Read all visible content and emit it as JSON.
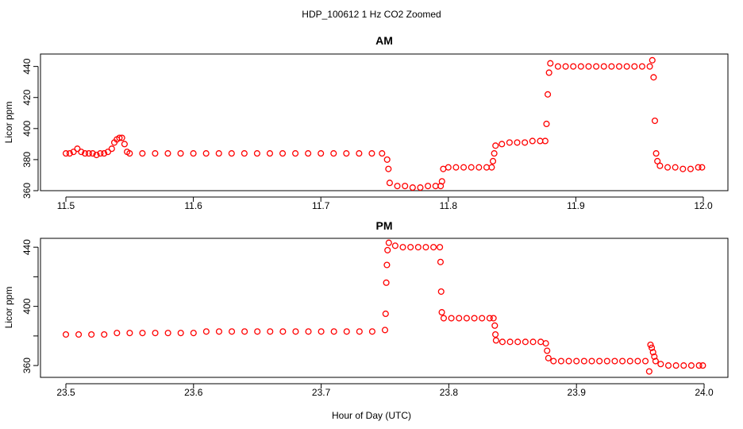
{
  "figure": {
    "title": "HDP_100612  1 Hz CO2 Zoomed",
    "xlabel": "Hour of Day (UTC)",
    "point_color": "#ff0000"
  },
  "chart_data": [
    {
      "type": "scatter",
      "title": "AM",
      "xlabel": "Hour of Day (UTC)",
      "ylabel": "Licor ppm",
      "xlim": [
        11.5,
        12.0
      ],
      "ylim": [
        360,
        448
      ],
      "xticks": [
        11.5,
        11.6,
        11.7,
        11.8,
        11.9,
        12.0
      ],
      "xtick_labels": [
        "11.5",
        "11.6",
        "11.7",
        "11.8",
        "11.9",
        "12.0"
      ],
      "yticks": [
        360,
        380,
        400,
        420,
        440
      ],
      "ytick_labels": [
        "360",
        "380",
        "400",
        "420",
        "440"
      ],
      "grid": false,
      "series": [
        {
          "color": "#ff0000",
          "points": [
            [
              11.5,
              384
            ],
            [
              11.503,
              384
            ],
            [
              11.506,
              385
            ],
            [
              11.509,
              387
            ],
            [
              11.512,
              385
            ],
            [
              11.515,
              384
            ],
            [
              11.518,
              384
            ],
            [
              11.521,
              384
            ],
            [
              11.524,
              383
            ],
            [
              11.527,
              384
            ],
            [
              11.53,
              384
            ],
            [
              11.533,
              385
            ],
            [
              11.536,
              387
            ],
            [
              11.538,
              391
            ],
            [
              11.54,
              393
            ],
            [
              11.542,
              394
            ],
            [
              11.544,
              394
            ],
            [
              11.546,
              390
            ],
            [
              11.548,
              385
            ],
            [
              11.55,
              384
            ],
            [
              11.56,
              384
            ],
            [
              11.57,
              384
            ],
            [
              11.58,
              384
            ],
            [
              11.59,
              384
            ],
            [
              11.6,
              384
            ],
            [
              11.61,
              384
            ],
            [
              11.62,
              384
            ],
            [
              11.63,
              384
            ],
            [
              11.64,
              384
            ],
            [
              11.65,
              384
            ],
            [
              11.66,
              384
            ],
            [
              11.67,
              384
            ],
            [
              11.68,
              384
            ],
            [
              11.69,
              384
            ],
            [
              11.7,
              384
            ],
            [
              11.71,
              384
            ],
            [
              11.72,
              384
            ],
            [
              11.73,
              384
            ],
            [
              11.74,
              384
            ],
            [
              11.748,
              384
            ],
            [
              11.752,
              380
            ],
            [
              11.753,
              374
            ],
            [
              11.754,
              365
            ],
            [
              11.76,
              363
            ],
            [
              11.766,
              363
            ],
            [
              11.772,
              362
            ],
            [
              11.778,
              362
            ],
            [
              11.784,
              363
            ],
            [
              11.79,
              363
            ],
            [
              11.794,
              363
            ],
            [
              11.795,
              366
            ],
            [
              11.796,
              374
            ],
            [
              11.8,
              375
            ],
            [
              11.806,
              375
            ],
            [
              11.812,
              375
            ],
            [
              11.818,
              375
            ],
            [
              11.824,
              375
            ],
            [
              11.83,
              375
            ],
            [
              11.834,
              375
            ],
            [
              11.835,
              379
            ],
            [
              11.836,
              384
            ],
            [
              11.837,
              389
            ],
            [
              11.842,
              390
            ],
            [
              11.848,
              391
            ],
            [
              11.854,
              391
            ],
            [
              11.86,
              391
            ],
            [
              11.866,
              392
            ],
            [
              11.872,
              392
            ],
            [
              11.876,
              392
            ],
            [
              11.877,
              403
            ],
            [
              11.878,
              422
            ],
            [
              11.879,
              436
            ],
            [
              11.88,
              442
            ],
            [
              11.886,
              440
            ],
            [
              11.892,
              440
            ],
            [
              11.898,
              440
            ],
            [
              11.904,
              440
            ],
            [
              11.91,
              440
            ],
            [
              11.916,
              440
            ],
            [
              11.922,
              440
            ],
            [
              11.928,
              440
            ],
            [
              11.934,
              440
            ],
            [
              11.94,
              440
            ],
            [
              11.946,
              440
            ],
            [
              11.952,
              440
            ],
            [
              11.958,
              440
            ],
            [
              11.96,
              444
            ],
            [
              11.961,
              433
            ],
            [
              11.962,
              405
            ],
            [
              11.963,
              384
            ],
            [
              11.964,
              379
            ],
            [
              11.966,
              376
            ],
            [
              11.972,
              375
            ],
            [
              11.978,
              375
            ],
            [
              11.984,
              374
            ],
            [
              11.99,
              374
            ],
            [
              11.996,
              375
            ],
            [
              11.999,
              375
            ]
          ]
        }
      ]
    },
    {
      "type": "scatter",
      "title": "PM",
      "xlabel": "Hour of Day (UTC)",
      "ylabel": "Licor ppm",
      "xlim": [
        23.5,
        24.0
      ],
      "ylim": [
        352,
        446
      ],
      "xticks": [
        23.5,
        23.6,
        23.7,
        23.8,
        23.9,
        24.0
      ],
      "xtick_labels": [
        "23.5",
        "23.6",
        "23.7",
        "23.8",
        "23.9",
        "24.0"
      ],
      "yticks": [
        360,
        380,
        400,
        420,
        440
      ],
      "ytick_labels": [
        "360",
        "",
        "400",
        "",
        "440"
      ],
      "grid": false,
      "series": [
        {
          "color": "#ff0000",
          "points": [
            [
              23.5,
              381
            ],
            [
              23.51,
              381
            ],
            [
              23.52,
              381
            ],
            [
              23.53,
              381
            ],
            [
              23.54,
              382
            ],
            [
              23.55,
              382
            ],
            [
              23.56,
              382
            ],
            [
              23.57,
              382
            ],
            [
              23.58,
              382
            ],
            [
              23.59,
              382
            ],
            [
              23.6,
              382
            ],
            [
              23.61,
              383
            ],
            [
              23.62,
              383
            ],
            [
              23.63,
              383
            ],
            [
              23.64,
              383
            ],
            [
              23.65,
              383
            ],
            [
              23.66,
              383
            ],
            [
              23.67,
              383
            ],
            [
              23.68,
              383
            ],
            [
              23.69,
              383
            ],
            [
              23.7,
              383
            ],
            [
              23.71,
              383
            ],
            [
              23.72,
              383
            ],
            [
              23.73,
              383
            ],
            [
              23.74,
              383
            ],
            [
              23.75,
              384
            ],
            [
              23.7505,
              395
            ],
            [
              23.751,
              416
            ],
            [
              23.7515,
              428
            ],
            [
              23.752,
              438
            ],
            [
              23.753,
              443
            ],
            [
              23.758,
              441
            ],
            [
              23.764,
              440
            ],
            [
              23.77,
              440
            ],
            [
              23.776,
              440
            ],
            [
              23.782,
              440
            ],
            [
              23.788,
              440
            ],
            [
              23.793,
              440
            ],
            [
              23.7935,
              430
            ],
            [
              23.794,
              410
            ],
            [
              23.7945,
              396
            ],
            [
              23.796,
              392
            ],
            [
              23.802,
              392
            ],
            [
              23.808,
              392
            ],
            [
              23.814,
              392
            ],
            [
              23.82,
              392
            ],
            [
              23.826,
              392
            ],
            [
              23.832,
              392
            ],
            [
              23.835,
              392
            ],
            [
              23.836,
              387
            ],
            [
              23.8365,
              381
            ],
            [
              23.837,
              377
            ],
            [
              23.842,
              376
            ],
            [
              23.848,
              376
            ],
            [
              23.854,
              376
            ],
            [
              23.86,
              376
            ],
            [
              23.866,
              376
            ],
            [
              23.872,
              376
            ],
            [
              23.876,
              375
            ],
            [
              23.877,
              370
            ],
            [
              23.878,
              365
            ],
            [
              23.882,
              363
            ],
            [
              23.888,
              363
            ],
            [
              23.894,
              363
            ],
            [
              23.9,
              363
            ],
            [
              23.906,
              363
            ],
            [
              23.912,
              363
            ],
            [
              23.918,
              363
            ],
            [
              23.924,
              363
            ],
            [
              23.93,
              363
            ],
            [
              23.936,
              363
            ],
            [
              23.942,
              363
            ],
            [
              23.948,
              363
            ],
            [
              23.954,
              363
            ],
            [
              23.957,
              356
            ],
            [
              23.958,
              374
            ],
            [
              23.959,
              372
            ],
            [
              23.96,
              369
            ],
            [
              23.961,
              366
            ],
            [
              23.962,
              363
            ],
            [
              23.966,
              361
            ],
            [
              23.972,
              360
            ],
            [
              23.978,
              360
            ],
            [
              23.984,
              360
            ],
            [
              23.99,
              360
            ],
            [
              23.996,
              360
            ],
            [
              23.999,
              360
            ]
          ]
        }
      ]
    }
  ]
}
